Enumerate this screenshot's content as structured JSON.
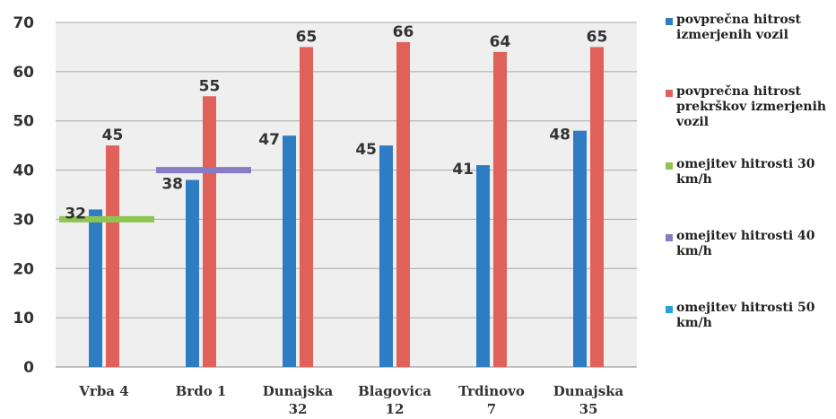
{
  "chart_data": {
    "type": "bar",
    "categories": [
      "Vrba 4",
      "Brdo 1",
      "Dunajska 32",
      "Blagovica 12",
      "Trdinovo 7",
      "Dunajska 35"
    ],
    "series": [
      {
        "name": "povprečna hitrost izmerjenih vozil",
        "values": [
          32,
          38,
          47,
          45,
          41,
          48
        ],
        "color": "#2e7cc4"
      },
      {
        "name": "povprečna hitrost prekrškov izmerjenih vozil",
        "values": [
          45,
          55,
          65,
          66,
          64,
          65
        ],
        "color": "#e0605a"
      }
    ],
    "limits": [
      {
        "name": "omejitev hitrosti 30 km/h",
        "value": 30,
        "category_index": 0,
        "color": "#8ec451"
      },
      {
        "name": "omejitev hitrosti 40 km/h",
        "value": 40,
        "category_index": 1,
        "color": "#8a7cc4"
      },
      {
        "name": "omejitev hitrosti 50 km/h",
        "value": 50,
        "color": "#2a9fd6"
      }
    ],
    "ylim": [
      0,
      70
    ],
    "yticks": [
      "0",
      "10",
      "20",
      "30",
      "40",
      "50",
      "60",
      "70"
    ],
    "grid": true,
    "legend": "right",
    "title": "",
    "xlabel": "",
    "ylabel": ""
  }
}
